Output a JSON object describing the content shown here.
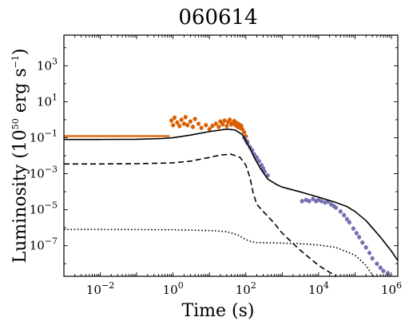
{
  "chart_data": {
    "type": "scatter",
    "title": "060614",
    "xlabel": "Time (s)",
    "ylabel": {
      "prefix": "Luminosity (10",
      "exp": "50",
      "middle": " erg s",
      "exp2": "−1",
      "suffix": ")"
    },
    "x_scale": "log",
    "y_scale": "log",
    "xlim": [
      0.001,
      1500000
    ],
    "ylim": [
      2e-09,
      50000
    ],
    "x_ticks": [
      {
        "value": 0.01,
        "base": "10",
        "exp": "−2"
      },
      {
        "value": 1,
        "base": "10",
        "exp": "0"
      },
      {
        "value": 100,
        "base": "10",
        "exp": "2"
      },
      {
        "value": 10000,
        "base": "10",
        "exp": "4"
      },
      {
        "value": 1000000,
        "base": "10",
        "exp": "6"
      }
    ],
    "y_ticks": [
      {
        "value": 1e-07,
        "base": "10",
        "exp": "−7"
      },
      {
        "value": 1e-05,
        "base": "10",
        "exp": "−5"
      },
      {
        "value": 0.001,
        "base": "10",
        "exp": "−3"
      },
      {
        "value": 0.1,
        "base": "10",
        "exp": "−1"
      },
      {
        "value": 10,
        "base": "10",
        "exp": "1"
      },
      {
        "value": 1000,
        "base": "10",
        "exp": "3"
      }
    ],
    "grid": false,
    "legend": "none",
    "colors": {
      "bat": "#d95f02",
      "xrt": "#7570b3",
      "model": "#000000"
    },
    "series": [
      {
        "key": "bat_band",
        "style": "band",
        "color": "#d95f02",
        "x": [
          0.001,
          0.8
        ],
        "y_low": [
          0.105,
          0.105
        ],
        "y_high": [
          0.145,
          0.145
        ]
      },
      {
        "key": "bat_points",
        "style": "points",
        "color": "#d95f02",
        "x": [
          0.9,
          1.0,
          1.1,
          1.3,
          1.5,
          1.7,
          2.0,
          2.2,
          2.5,
          3.0,
          3.5,
          4.0,
          5.0,
          6.0,
          8.0,
          10.0,
          12.0,
          15.0,
          18.0,
          20.0,
          23.0,
          26.0,
          30.0,
          33.0,
          36.0,
          40.0,
          44.0,
          48.0,
          52.0,
          56.0,
          60.0,
          65.0,
          70.0,
          75.0,
          80.0,
          90.0,
          100.0,
          110.0
        ],
        "y": [
          0.9,
          0.5,
          1.3,
          0.7,
          0.45,
          1.0,
          0.6,
          1.4,
          0.5,
          0.8,
          0.4,
          1.1,
          0.6,
          0.35,
          0.5,
          0.3,
          0.45,
          0.6,
          0.4,
          0.8,
          0.55,
          0.9,
          0.45,
          0.75,
          1.0,
          0.55,
          0.7,
          0.85,
          0.5,
          0.65,
          0.4,
          0.55,
          0.35,
          0.45,
          0.3,
          0.2,
          0.12,
          0.06
        ]
      },
      {
        "key": "xrt_points",
        "style": "points",
        "color": "#7570b3",
        "x": [
          90,
          100,
          110,
          130,
          150,
          170,
          200,
          230,
          270,
          300,
          330,
          400,
          3500,
          4500,
          5500,
          7000,
          8500,
          10000,
          12000,
          15000,
          18000,
          22000,
          26000,
          30000,
          40000,
          50000,
          60000,
          70000,
          90000,
          110000,
          130000,
          160000,
          200000,
          250000,
          300000,
          400000,
          500000,
          600000,
          800000
        ],
        "y": [
          0.1,
          0.07,
          0.05,
          0.03,
          0.02,
          0.012,
          0.008,
          0.005,
          0.003,
          0.002,
          0.0013,
          0.0008,
          3e-05,
          3.5e-05,
          3e-05,
          4e-05,
          3e-05,
          3.5e-05,
          3e-05,
          2.5e-05,
          2.8e-05,
          2e-05,
          1.6e-05,
          1.3e-05,
          8e-06,
          5e-06,
          3e-06,
          2e-06,
          9e-07,
          5e-07,
          3e-07,
          1.5e-07,
          8e-08,
          4e-08,
          2e-08,
          1e-08,
          6e-09,
          4e-09,
          3e-09
        ]
      },
      {
        "key": "model_total",
        "style": "solid",
        "color": "#000000",
        "x": [
          0.001,
          0.01,
          0.1,
          0.5,
          1,
          3,
          10,
          30,
          50,
          80,
          100,
          130,
          170,
          250,
          400,
          700,
          1000,
          3000,
          10000,
          30000,
          60000,
          100000,
          200000,
          500000,
          1000000,
          1500000
        ],
        "y": [
          0.08,
          0.08,
          0.082,
          0.09,
          0.1,
          0.14,
          0.22,
          0.3,
          0.27,
          0.15,
          0.07,
          0.025,
          0.008,
          0.002,
          0.0005,
          0.00025,
          0.00018,
          0.0001,
          5e-05,
          2.5e-05,
          1.5e-05,
          8e-06,
          2.5e-06,
          3e-07,
          5e-08,
          1.5e-08
        ]
      },
      {
        "key": "model_component_1",
        "style": "dashed",
        "color": "#000000",
        "x": [
          0.001,
          0.01,
          0.1,
          1,
          3,
          10,
          20,
          40,
          70,
          100,
          130,
          160,
          200,
          300,
          600,
          1000,
          3000,
          10000,
          30000,
          60000
        ],
        "y": [
          0.0035,
          0.0035,
          0.0036,
          0.004,
          0.005,
          0.008,
          0.011,
          0.012,
          0.008,
          0.003,
          0.0006,
          8e-05,
          2e-05,
          8e-06,
          1.8e-06,
          5e-07,
          6e-08,
          8e-09,
          2e-09,
          1e-09
        ]
      },
      {
        "key": "model_component_2",
        "style": "dotted",
        "color": "#000000",
        "x": [
          0.001,
          0.01,
          0.1,
          1,
          10,
          30,
          60,
          100,
          150,
          200,
          400,
          1000,
          3000,
          10000,
          30000,
          100000,
          200000,
          400000
        ],
        "y": [
          8e-07,
          8e-07,
          7.9e-07,
          7.7e-07,
          7e-07,
          6e-07,
          4e-07,
          2.2e-07,
          1.6e-07,
          1.5e-07,
          1.45e-07,
          1.4e-07,
          1.3e-07,
          1.1e-07,
          8e-08,
          3e-08,
          8e-09,
          1e-09
        ]
      }
    ]
  }
}
